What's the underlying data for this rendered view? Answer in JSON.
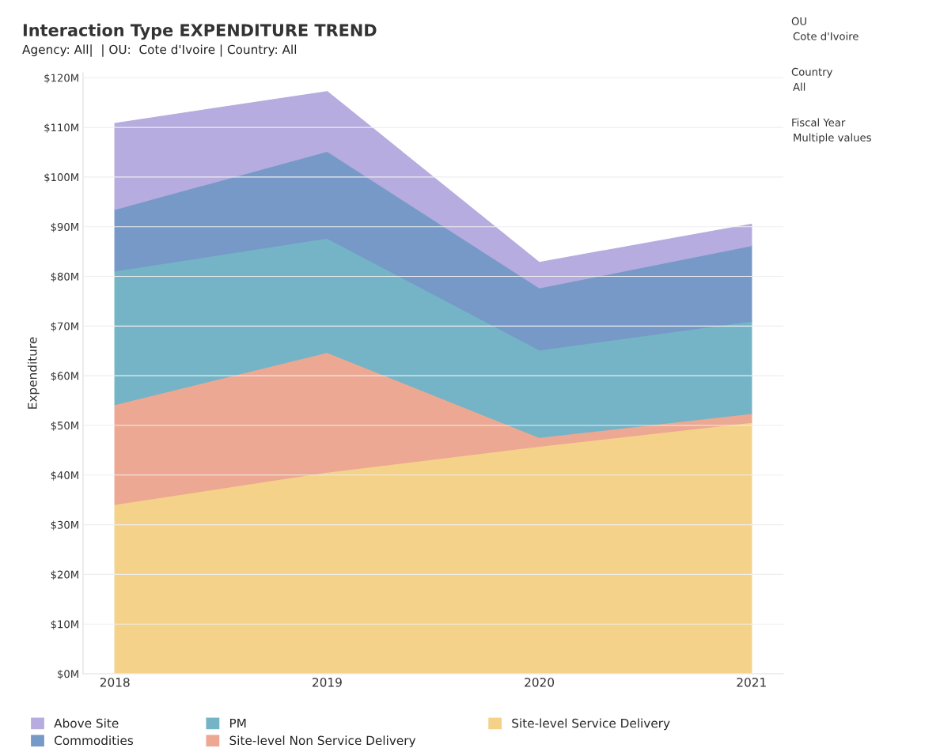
{
  "chart_data": {
    "type": "area",
    "stacked": true,
    "title": "Interaction Type EXPENDITURE TREND",
    "subtitle": "Agency: All|  | OU:  Cote d'Ivoire | Country: All",
    "ylabel": "Expenditure",
    "categories": [
      "2018",
      "2019",
      "2020",
      "2021"
    ],
    "series": [
      {
        "name": "Site-level Service Delivery",
        "color": "#f5d28a",
        "values": [
          34.1,
          40.6,
          45.8,
          50.6
        ]
      },
      {
        "name": "Site-level Non Service Delivery",
        "color": "#eca893",
        "values": [
          20.1,
          24.1,
          1.8,
          1.8
        ]
      },
      {
        "name": "PM",
        "color": "#74b4c6",
        "values": [
          26.9,
          23.0,
          17.6,
          18.6
        ]
      },
      {
        "name": "Commodities",
        "color": "#7699c8",
        "values": [
          12.4,
          17.5,
          12.5,
          15.2
        ]
      },
      {
        "name": "Above Site",
        "color": "#b6acdf",
        "values": [
          17.3,
          12.0,
          5.1,
          4.3
        ]
      }
    ],
    "ylim": [
      0,
      121
    ],
    "yticks": [
      {
        "value": 0,
        "label": "$0M"
      },
      {
        "value": 10,
        "label": "$10M"
      },
      {
        "value": 20,
        "label": "$20M"
      },
      {
        "value": 30,
        "label": "$30M"
      },
      {
        "value": 40,
        "label": "$40M"
      },
      {
        "value": 50,
        "label": "$50M"
      },
      {
        "value": 60,
        "label": "$60M"
      },
      {
        "value": 70,
        "label": "$70M"
      },
      {
        "value": 80,
        "label": "$80M"
      },
      {
        "value": 90,
        "label": "$90M"
      },
      {
        "value": 100,
        "label": "$100M"
      },
      {
        "value": 110,
        "label": "$110M"
      },
      {
        "value": 120,
        "label": "$120M"
      }
    ],
    "grid": "y",
    "legend": "bottom",
    "annotations": [
      "OU",
      "Cote d'Ivoire",
      "Country",
      "All",
      "Fiscal Year",
      "Multiple values"
    ]
  }
}
